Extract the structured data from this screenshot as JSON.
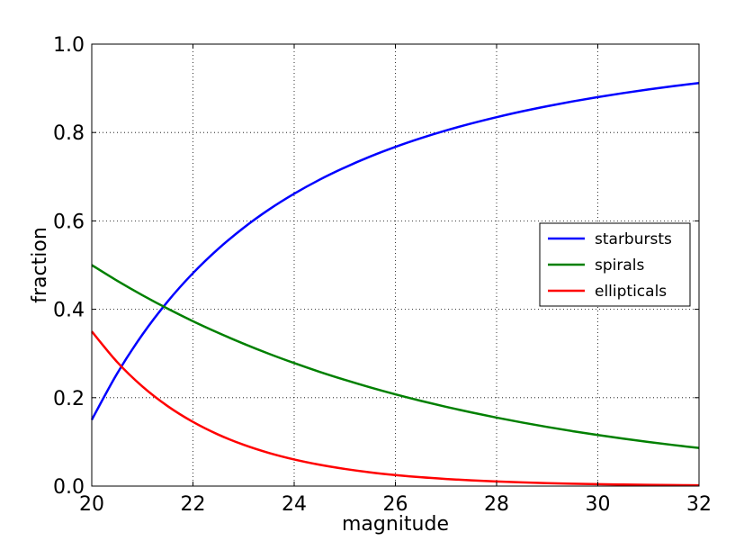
{
  "chart_data": {
    "type": "line",
    "title": "",
    "xlabel": "magnitude",
    "ylabel": "fraction",
    "xlim": [
      20,
      32
    ],
    "ylim": [
      0.0,
      1.0
    ],
    "grid": true,
    "legend_position": "center-right",
    "xticks": [
      "20",
      "22",
      "24",
      "26",
      "28",
      "30",
      "32"
    ],
    "yticks": [
      "0.0",
      "0.2",
      "0.4",
      "0.6",
      "0.8",
      "1.0"
    ],
    "x": [
      20,
      20.5,
      21,
      21.5,
      22,
      22.5,
      23,
      23.5,
      24,
      24.5,
      25,
      25.5,
      26,
      26.5,
      27,
      27.5,
      28,
      28.5,
      29,
      29.5,
      30,
      30.5,
      31,
      31.5,
      32
    ],
    "series": [
      {
        "name": "starbursts",
        "color": "#0000ff",
        "values": [
          0.15,
          0.2544,
          0.3427,
          0.4177,
          0.4818,
          0.5368,
          0.5843,
          0.6256,
          0.6615,
          0.6931,
          0.7208,
          0.7455,
          0.7674,
          0.787,
          0.8046,
          0.8204,
          0.8347,
          0.8477,
          0.8595,
          0.8703,
          0.8801,
          0.8891,
          0.8974,
          0.905,
          0.912
        ]
      },
      {
        "name": "spirals",
        "color": "#008000",
        "values": [
          0.5,
          0.4647,
          0.4319,
          0.4014,
          0.373,
          0.3467,
          0.3222,
          0.2994,
          0.2783,
          0.2586,
          0.2404,
          0.2234,
          0.2076,
          0.193,
          0.1793,
          0.1667,
          0.1549,
          0.144,
          0.1338,
          0.1243,
          0.1156,
          0.1074,
          0.0998,
          0.0928,
          0.0862
        ]
      },
      {
        "name": "ellipticals",
        "color": "#ff0000",
        "values": [
          0.35,
          0.2809,
          0.2254,
          0.1809,
          0.1452,
          0.1165,
          0.0935,
          0.075,
          0.0602,
          0.0483,
          0.0388,
          0.0311,
          0.025,
          0.02,
          0.0161,
          0.0129,
          0.0104,
          0.0083,
          0.0067,
          0.0054,
          0.0043,
          0.0035,
          0.0028,
          0.0022,
          0.0018
        ]
      }
    ]
  }
}
